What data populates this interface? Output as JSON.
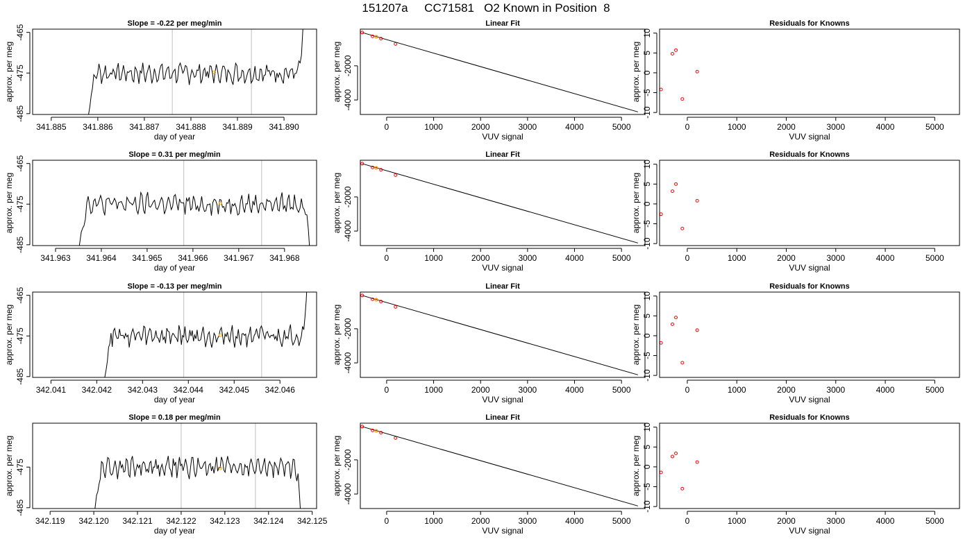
{
  "page": {
    "title": "151207a     CC71581   O2 Known in Position  8"
  },
  "chart_data": [
    {
      "type": "line",
      "row": 0,
      "title": "Slope =  -0.22  per meg/min",
      "xlabel": "day of year",
      "ylabel": "approx. per meg",
      "xlim": [
        341.8846,
        341.8907
      ],
      "ylim": [
        -485.2,
        -464.2
      ],
      "xticks": [
        "341.885",
        "341.886",
        "341.887",
        "341.888",
        "341.889",
        "341.890"
      ],
      "yticks": [
        "-465",
        "-475",
        "-485"
      ],
      "vlines": [
        341.8876,
        341.8893
      ],
      "start_x": 341.88572,
      "end_x": 341.89043,
      "marker": {
        "x": 341.8885,
        "y": -474.8
      },
      "series_color": "#000000",
      "marker_color": "#ffa500",
      "vline_color": "#bebebe"
    },
    {
      "type": "scatter",
      "row": 0,
      "title": "Linear Fit",
      "xlabel": "VUV signal",
      "ylabel": "approx. per meg",
      "xlim": [
        -560,
        5500
      ],
      "ylim": [
        -4850,
        150
      ],
      "xticks": [
        "0",
        "1000",
        "2000",
        "3000",
        "4000",
        "5000"
      ],
      "yticks": [
        "-2000",
        "-4000"
      ],
      "points": [
        {
          "x": -520,
          "y": -50
        },
        {
          "x": -300,
          "y": -270
        },
        {
          "x": -220,
          "y": -300
        },
        {
          "x": -120,
          "y": -410
        },
        {
          "x": 190,
          "y": -720
        }
      ],
      "highlight": {
        "x": -220,
        "y": -300
      },
      "fit_line": [
        {
          "x": -520,
          "y": -50
        },
        {
          "x": 5350,
          "y": -4700
        }
      ],
      "point_color": "#ff0000",
      "highlight_color": "#ffa500"
    },
    {
      "type": "scatter",
      "row": 0,
      "title": "Residuals for Knowns",
      "xlabel": "VUV signal",
      "ylabel": "approx. per meg",
      "xlim": [
        -560,
        5500
      ],
      "ylim": [
        -10.5,
        11
      ],
      "xticks": [
        "0",
        "1000",
        "2000",
        "3000",
        "4000",
        "5000"
      ],
      "yticks": [
        "10",
        "5",
        "0",
        "-5",
        "-10"
      ],
      "points": [
        {
          "x": -530,
          "y": -4.2
        },
        {
          "x": -300,
          "y": 4.8
        },
        {
          "x": -230,
          "y": 5.7
        },
        {
          "x": -100,
          "y": -6.6
        },
        {
          "x": 200,
          "y": 0.3
        }
      ],
      "point_color": "#ff0000"
    },
    {
      "type": "line",
      "row": 1,
      "title": "Slope =  0.31  per meg/min",
      "xlabel": "day of year",
      "ylabel": "approx. per meg",
      "xlim": [
        341.9625,
        341.9687
      ],
      "ylim": [
        -485.2,
        -464.2
      ],
      "xticks": [
        "341.963",
        "341.964",
        "341.965",
        "341.966",
        "341.967",
        "341.968"
      ],
      "yticks": [
        "-465",
        "-475",
        "-485"
      ],
      "vlines": [
        341.9658,
        341.9675
      ],
      "start_x": 341.96344,
      "end_x": 341.96858,
      "marker": {
        "x": 341.9666,
        "y": -474.8
      },
      "series_color": "#000000",
      "marker_color": "#ffa500",
      "vline_color": "#bebebe"
    },
    {
      "type": "scatter",
      "row": 1,
      "title": "Linear Fit",
      "xlabel": "VUV signal",
      "ylabel": "approx. per meg",
      "xlim": [
        -560,
        5500
      ],
      "ylim": [
        -4850,
        150
      ],
      "xticks": [
        "0",
        "1000",
        "2000",
        "3000",
        "4000",
        "5000"
      ],
      "yticks": [
        "-2000",
        "-4000"
      ],
      "points": [
        {
          "x": -520,
          "y": -50
        },
        {
          "x": -300,
          "y": -270
        },
        {
          "x": -220,
          "y": -300
        },
        {
          "x": -120,
          "y": -410
        },
        {
          "x": 190,
          "y": -720
        }
      ],
      "highlight": {
        "x": -220,
        "y": -300
      },
      "fit_line": [
        {
          "x": -520,
          "y": -50
        },
        {
          "x": 5350,
          "y": -4700
        }
      ],
      "point_color": "#ff0000",
      "highlight_color": "#ffa500"
    },
    {
      "type": "scatter",
      "row": 1,
      "title": "Residuals for Knowns",
      "xlabel": "VUV signal",
      "ylabel": "approx. per meg",
      "xlim": [
        -560,
        5500
      ],
      "ylim": [
        -10.5,
        11
      ],
      "xticks": [
        "0",
        "1000",
        "2000",
        "3000",
        "4000",
        "5000"
      ],
      "yticks": [
        "10",
        "5",
        "0",
        "-5",
        "-10"
      ],
      "points": [
        {
          "x": -530,
          "y": -2.6
        },
        {
          "x": -300,
          "y": 3.2
        },
        {
          "x": -230,
          "y": 5.0
        },
        {
          "x": -100,
          "y": -6.2
        },
        {
          "x": 200,
          "y": 0.8
        }
      ],
      "point_color": "#ff0000"
    },
    {
      "type": "line",
      "row": 2,
      "title": "Slope =  -0.13  per meg/min",
      "xlabel": "day of year",
      "ylabel": "approx. per meg",
      "xlim": [
        342.0406,
        342.0468
      ],
      "ylim": [
        -485.2,
        -464.2
      ],
      "xticks": [
        "342.041",
        "342.042",
        "342.043",
        "342.044",
        "342.045",
        "342.046"
      ],
      "yticks": [
        "-465",
        "-475",
        "-485"
      ],
      "vlines": [
        342.0439,
        342.0456
      ],
      "start_x": 342.0421,
      "end_x": 342.0466,
      "marker": {
        "x": 342.0447,
        "y": -474.8
      },
      "series_color": "#000000",
      "marker_color": "#ffa500",
      "vline_color": "#bebebe"
    },
    {
      "type": "scatter",
      "row": 2,
      "title": "Linear Fit",
      "xlabel": "VUV signal",
      "ylabel": "approx. per meg",
      "xlim": [
        -560,
        5500
      ],
      "ylim": [
        -4850,
        150
      ],
      "xticks": [
        "0",
        "1000",
        "2000",
        "3000",
        "4000",
        "5000"
      ],
      "yticks": [
        "-2000",
        "-4000"
      ],
      "points": [
        {
          "x": -520,
          "y": -50
        },
        {
          "x": -300,
          "y": -270
        },
        {
          "x": -220,
          "y": -300
        },
        {
          "x": -120,
          "y": -410
        },
        {
          "x": 190,
          "y": -720
        }
      ],
      "highlight": {
        "x": -220,
        "y": -300
      },
      "fit_line": [
        {
          "x": -520,
          "y": -50
        },
        {
          "x": 5350,
          "y": -4700
        }
      ],
      "point_color": "#ff0000",
      "highlight_color": "#ffa500"
    },
    {
      "type": "scatter",
      "row": 2,
      "title": "Residuals for Knowns",
      "xlabel": "VUV signal",
      "ylabel": "approx. per meg",
      "xlim": [
        -560,
        5500
      ],
      "ylim": [
        -10.5,
        11
      ],
      "xticks": [
        "0",
        "1000",
        "2000",
        "3000",
        "4000",
        "5000"
      ],
      "yticks": [
        "10",
        "5",
        "0",
        "-5",
        "-10"
      ],
      "points": [
        {
          "x": -530,
          "y": -1.8
        },
        {
          "x": -300,
          "y": 2.9
        },
        {
          "x": -230,
          "y": 4.6
        },
        {
          "x": -100,
          "y": -6.8
        },
        {
          "x": 200,
          "y": 1.4
        }
      ],
      "point_color": "#ff0000"
    },
    {
      "type": "line",
      "row": 3,
      "title": "Slope =  0.18  per meg/min",
      "xlabel": "day of year",
      "ylabel": "approx. per meg",
      "xlim": [
        342.1186,
        342.1251
      ],
      "ylim": [
        -485.2,
        -464.2
      ],
      "xticks": [
        "342.119",
        "342.120",
        "342.121",
        "342.122",
        "342.123",
        "342.124",
        "342.125"
      ],
      "yticks": [
        "-475",
        "-485"
      ],
      "vlines": [
        342.122,
        342.1237
      ],
      "start_x": 342.11995,
      "end_x": 342.12476,
      "marker": {
        "x": 342.1229,
        "y": -475.3
      },
      "series_color": "#000000",
      "marker_color": "#ffa500",
      "vline_color": "#bebebe"
    },
    {
      "type": "scatter",
      "row": 3,
      "title": "Linear Fit",
      "xlabel": "VUV signal",
      "ylabel": "approx. per meg",
      "xlim": [
        -560,
        5500
      ],
      "ylim": [
        -4850,
        150
      ],
      "xticks": [
        "0",
        "1000",
        "2000",
        "3000",
        "4000",
        "5000"
      ],
      "yticks": [
        "-2000",
        "-4000"
      ],
      "points": [
        {
          "x": -520,
          "y": -50
        },
        {
          "x": -300,
          "y": -270
        },
        {
          "x": -220,
          "y": -300
        },
        {
          "x": -120,
          "y": -410
        },
        {
          "x": 190,
          "y": -720
        }
      ],
      "highlight": {
        "x": -220,
        "y": -300
      },
      "fit_line": [
        {
          "x": -520,
          "y": -50
        },
        {
          "x": 5350,
          "y": -4700
        }
      ],
      "point_color": "#ff0000",
      "highlight_color": "#ffa500"
    },
    {
      "type": "scatter",
      "row": 3,
      "title": "Residuals for Knowns",
      "xlabel": "VUV signal",
      "ylabel": "approx. per meg",
      "xlim": [
        -560,
        5500
      ],
      "ylim": [
        -10.5,
        11
      ],
      "xticks": [
        "0",
        "1000",
        "2000",
        "3000",
        "4000",
        "5000"
      ],
      "yticks": [
        "10",
        "5",
        "0",
        "-5",
        "-10"
      ],
      "points": [
        {
          "x": -530,
          "y": -1.4
        },
        {
          "x": -300,
          "y": 2.6
        },
        {
          "x": -230,
          "y": 3.4
        },
        {
          "x": -100,
          "y": -5.5
        },
        {
          "x": 200,
          "y": 1.2
        }
      ],
      "point_color": "#ff0000"
    }
  ]
}
